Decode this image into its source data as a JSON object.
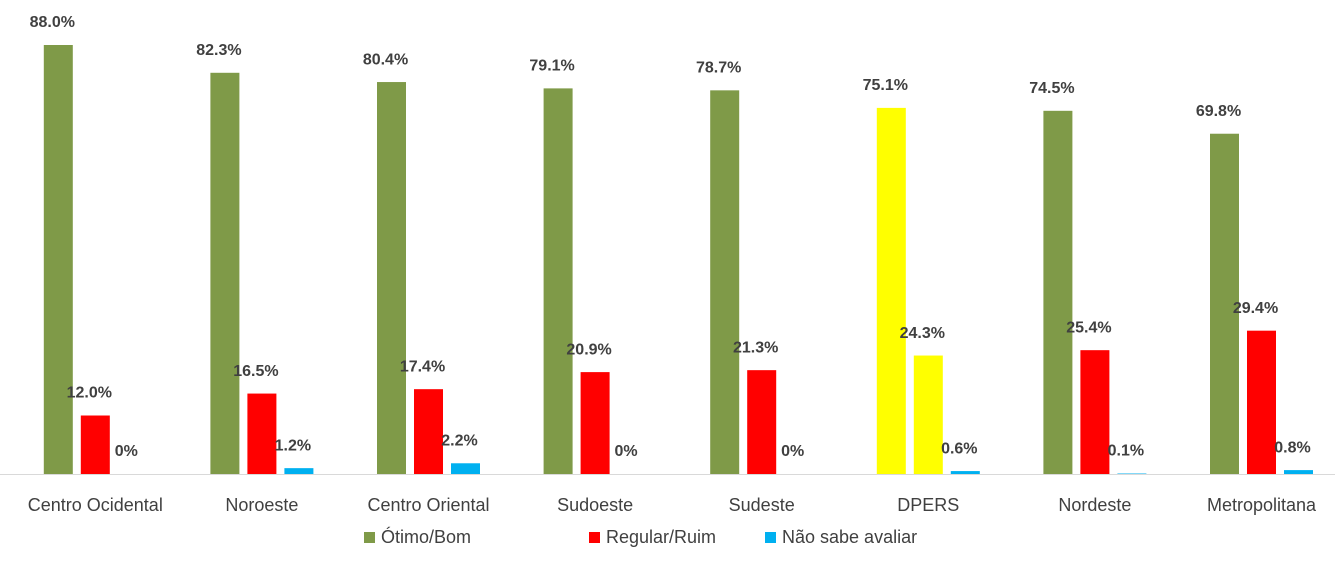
{
  "chart_data": {
    "type": "bar",
    "categories": [
      "Centro Ocidental",
      "Noroeste",
      "Centro Oriental",
      "Sudoeste",
      "Sudeste",
      "DPERS",
      "Nordeste",
      "Metropolitana"
    ],
    "series": [
      {
        "name": "Ótimo/Bom",
        "color": "#7f9a48",
        "colors": [
          "#7f9a48",
          "#7f9a48",
          "#7f9a48",
          "#7f9a48",
          "#7f9a48",
          "#ffff00",
          "#7f9a48",
          "#7f9a48"
        ],
        "values": [
          88.0,
          82.3,
          80.4,
          79.1,
          78.7,
          75.1,
          74.5,
          69.8
        ],
        "value_labels": [
          "88.0%",
          "82.3%",
          "80.4%",
          "79.1%",
          "78.7%",
          "75.1%",
          "74.5%",
          "69.8%"
        ]
      },
      {
        "name": "Regular/Ruim",
        "color": "#ff0000",
        "colors": [
          "#ff0000",
          "#ff0000",
          "#ff0000",
          "#ff0000",
          "#ff0000",
          "#ffff00",
          "#ff0000",
          "#ff0000"
        ],
        "values": [
          12.0,
          16.5,
          17.4,
          20.9,
          21.3,
          24.3,
          25.4,
          29.4
        ],
        "value_labels": [
          "12.0%",
          "16.5%",
          "17.4%",
          "20.9%",
          "21.3%",
          "24.3%",
          "25.4%",
          "29.4%"
        ]
      },
      {
        "name": "Não sabe avaliar",
        "color": "#00b0f0",
        "colors": [
          "#00b0f0",
          "#00b0f0",
          "#00b0f0",
          "#00b0f0",
          "#00b0f0",
          "#00b0f0",
          "#00b0f0",
          "#00b0f0"
        ],
        "values": [
          0,
          1.2,
          2.2,
          0,
          0,
          0.6,
          0.1,
          0.8
        ],
        "value_labels": [
          "0%",
          "1.2%",
          "2.2%",
          "0%",
          "0%",
          "0.6%",
          "0.1%",
          "0.8%"
        ]
      }
    ],
    "legend": "bottom"
  }
}
